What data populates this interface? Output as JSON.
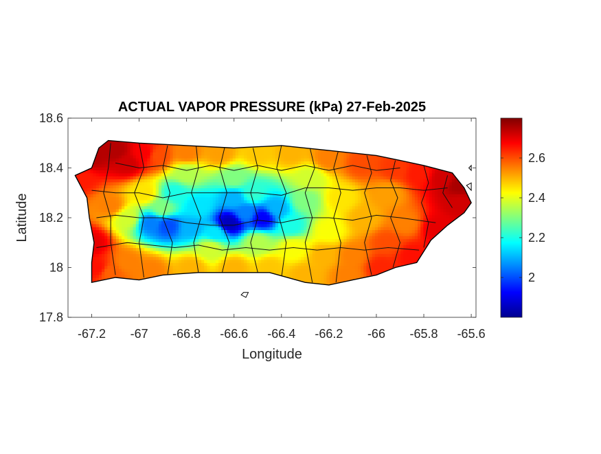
{
  "chart_data": {
    "type": "heatmap",
    "title": "ACTUAL VAPOR PRESSURE (kPa) 27-Feb-2025",
    "xlabel": "Longitude",
    "ylabel": "Latitude",
    "xlim": [
      -67.3,
      -65.58
    ],
    "ylim": [
      17.8,
      18.6
    ],
    "x_ticks": [
      {
        "value": -67.2,
        "label": "-67.2"
      },
      {
        "value": -67.0,
        "label": "-67"
      },
      {
        "value": -66.8,
        "label": "-66.8"
      },
      {
        "value": -66.6,
        "label": "-66.6"
      },
      {
        "value": -66.4,
        "label": "-66.4"
      },
      {
        "value": -66.2,
        "label": "-66.2"
      },
      {
        "value": -66.0,
        "label": "-66"
      },
      {
        "value": -65.8,
        "label": "-65.8"
      },
      {
        "value": -65.6,
        "label": "-65.6"
      }
    ],
    "y_ticks": [
      {
        "value": 18.6,
        "label": "18.6"
      },
      {
        "value": 18.4,
        "label": "18.4"
      },
      {
        "value": 18.2,
        "label": "18.2"
      },
      {
        "value": 18.0,
        "label": "18"
      },
      {
        "value": 17.8,
        "label": "17.8"
      }
    ],
    "colorbar": {
      "colormap": "jet",
      "range": [
        1.8,
        2.8
      ],
      "ticks": [
        {
          "value": 2.0,
          "label": "2"
        },
        {
          "value": 2.2,
          "label": "2.2"
        },
        {
          "value": 2.4,
          "label": "2.4"
        },
        {
          "value": 2.6,
          "label": "2.6"
        }
      ],
      "stops": [
        "#00008f",
        "#0000ff",
        "#0080ff",
        "#00ffff",
        "#80ff80",
        "#ffff00",
        "#ff8000",
        "#ff0000",
        "#800000"
      ]
    },
    "grid": false,
    "outline": [
      [
        -67.27,
        18.37
      ],
      [
        -67.2,
        18.4
      ],
      [
        -67.17,
        18.48
      ],
      [
        -67.13,
        18.51
      ],
      [
        -67.0,
        18.5
      ],
      [
        -66.8,
        18.49
      ],
      [
        -66.6,
        18.48
      ],
      [
        -66.4,
        18.49
      ],
      [
        -66.2,
        18.47
      ],
      [
        -66.0,
        18.45
      ],
      [
        -65.9,
        18.43
      ],
      [
        -65.8,
        18.41
      ],
      [
        -65.68,
        18.38
      ],
      [
        -65.63,
        18.32
      ],
      [
        -65.6,
        18.26
      ],
      [
        -65.63,
        18.22
      ],
      [
        -65.7,
        18.17
      ],
      [
        -65.77,
        18.11
      ],
      [
        -65.83,
        18.02
      ],
      [
        -65.92,
        18.0
      ],
      [
        -66.0,
        17.97
      ],
      [
        -66.1,
        17.95
      ],
      [
        -66.2,
        17.93
      ],
      [
        -66.3,
        17.94
      ],
      [
        -66.45,
        17.98
      ],
      [
        -66.6,
        17.98
      ],
      [
        -66.75,
        17.98
      ],
      [
        -66.9,
        17.97
      ],
      [
        -67.0,
        17.95
      ],
      [
        -67.1,
        17.96
      ],
      [
        -67.2,
        17.94
      ],
      [
        -67.2,
        18.02
      ],
      [
        -67.19,
        18.1
      ],
      [
        -67.21,
        18.2
      ],
      [
        -67.22,
        18.28
      ],
      [
        -67.27,
        18.37
      ]
    ],
    "municipal_borders": [
      [
        [
          -67.2,
          18.31
        ],
        [
          -67.1,
          18.3
        ],
        [
          -67.0,
          18.3
        ],
        [
          -66.9,
          18.28
        ],
        [
          -66.8,
          18.3
        ],
        [
          -66.7,
          18.3
        ],
        [
          -66.6,
          18.3
        ],
        [
          -66.5,
          18.3
        ],
        [
          -66.4,
          18.29
        ],
        [
          -66.3,
          18.32
        ],
        [
          -66.2,
          18.32
        ],
        [
          -66.1,
          18.31
        ],
        [
          -66.0,
          18.32
        ],
        [
          -65.9,
          18.32
        ],
        [
          -65.8,
          18.31
        ],
        [
          -65.7,
          18.32
        ]
      ],
      [
        [
          -67.18,
          18.2
        ],
        [
          -67.1,
          18.21
        ],
        [
          -67.0,
          18.2
        ],
        [
          -66.9,
          18.2
        ],
        [
          -66.8,
          18.18
        ],
        [
          -66.7,
          18.17
        ],
        [
          -66.6,
          18.17
        ],
        [
          -66.5,
          18.19
        ],
        [
          -66.4,
          18.18
        ],
        [
          -66.3,
          18.2
        ],
        [
          -66.2,
          18.2
        ],
        [
          -66.1,
          18.19
        ],
        [
          -66.0,
          18.21
        ],
        [
          -65.9,
          18.2
        ],
        [
          -65.75,
          18.18
        ]
      ],
      [
        [
          -67.18,
          18.08
        ],
        [
          -67.05,
          18.1
        ],
        [
          -66.95,
          18.09
        ],
        [
          -66.85,
          18.08
        ],
        [
          -66.75,
          18.09
        ],
        [
          -66.65,
          18.07
        ],
        [
          -66.55,
          18.08
        ],
        [
          -66.45,
          18.07
        ],
        [
          -66.35,
          18.08
        ],
        [
          -66.25,
          18.07
        ],
        [
          -66.15,
          18.08
        ],
        [
          -66.05,
          18.07
        ],
        [
          -65.95,
          18.08
        ],
        [
          -65.82,
          18.07
        ]
      ],
      [
        [
          -67.12,
          18.5
        ],
        [
          -67.13,
          18.4
        ],
        [
          -67.15,
          18.3
        ],
        [
          -67.12,
          18.2
        ],
        [
          -67.12,
          18.1
        ],
        [
          -67.1,
          17.97
        ]
      ],
      [
        [
          -67.0,
          18.5
        ],
        [
          -66.98,
          18.4
        ],
        [
          -67.02,
          18.3
        ],
        [
          -66.98,
          18.2
        ],
        [
          -67.0,
          18.1
        ],
        [
          -66.98,
          17.96
        ]
      ],
      [
        [
          -66.88,
          18.49
        ],
        [
          -66.9,
          18.4
        ],
        [
          -66.87,
          18.3
        ],
        [
          -66.9,
          18.2
        ],
        [
          -66.86,
          18.1
        ],
        [
          -66.88,
          17.97
        ]
      ],
      [
        [
          -66.76,
          18.49
        ],
        [
          -66.75,
          18.4
        ],
        [
          -66.78,
          18.3
        ],
        [
          -66.74,
          18.2
        ],
        [
          -66.77,
          18.1
        ],
        [
          -66.75,
          17.98
        ]
      ],
      [
        [
          -66.64,
          18.48
        ],
        [
          -66.66,
          18.4
        ],
        [
          -66.63,
          18.3
        ],
        [
          -66.66,
          18.2
        ],
        [
          -66.62,
          18.1
        ],
        [
          -66.65,
          17.98
        ]
      ],
      [
        [
          -66.52,
          18.48
        ],
        [
          -66.5,
          18.4
        ],
        [
          -66.53,
          18.3
        ],
        [
          -66.5,
          18.2
        ],
        [
          -66.53,
          18.1
        ],
        [
          -66.5,
          17.98
        ]
      ],
      [
        [
          -66.4,
          18.49
        ],
        [
          -66.42,
          18.4
        ],
        [
          -66.38,
          18.3
        ],
        [
          -66.41,
          18.2
        ],
        [
          -66.38,
          18.1
        ],
        [
          -66.4,
          17.96
        ]
      ],
      [
        [
          -66.28,
          18.48
        ],
        [
          -66.26,
          18.4
        ],
        [
          -66.3,
          18.3
        ],
        [
          -66.27,
          18.2
        ],
        [
          -66.3,
          18.1
        ],
        [
          -66.27,
          17.94
        ]
      ],
      [
        [
          -66.16,
          18.47
        ],
        [
          -66.18,
          18.4
        ],
        [
          -66.15,
          18.3
        ],
        [
          -66.18,
          18.2
        ],
        [
          -66.15,
          18.1
        ],
        [
          -66.17,
          17.94
        ]
      ],
      [
        [
          -66.04,
          18.45
        ],
        [
          -66.02,
          18.38
        ],
        [
          -66.05,
          18.3
        ],
        [
          -66.02,
          18.2
        ],
        [
          -66.05,
          18.1
        ],
        [
          -66.02,
          17.97
        ]
      ],
      [
        [
          -65.92,
          18.43
        ],
        [
          -65.94,
          18.35
        ],
        [
          -65.91,
          18.28
        ],
        [
          -65.94,
          18.2
        ],
        [
          -65.9,
          18.1
        ],
        [
          -65.93,
          18.0
        ]
      ],
      [
        [
          -65.8,
          18.41
        ],
        [
          -65.78,
          18.34
        ],
        [
          -65.81,
          18.26
        ],
        [
          -65.78,
          18.18
        ],
        [
          -65.8,
          18.08
        ]
      ],
      [
        [
          -65.7,
          18.37
        ],
        [
          -65.72,
          18.3
        ],
        [
          -65.68,
          18.24
        ]
      ],
      [
        [
          -67.1,
          18.42
        ],
        [
          -67.0,
          18.4
        ],
        [
          -66.9,
          18.41
        ],
        [
          -66.8,
          18.39
        ],
        [
          -66.7,
          18.41
        ],
        [
          -66.6,
          18.39
        ],
        [
          -66.5,
          18.41
        ],
        [
          -66.4,
          18.39
        ],
        [
          -66.3,
          18.41
        ],
        [
          -66.2,
          18.39
        ],
        [
          -66.1,
          18.41
        ],
        [
          -66.0,
          18.39
        ],
        [
          -65.9,
          18.4
        ]
      ]
    ],
    "islets": [
      [
        [
          -66.56,
          17.9
        ],
        [
          -66.54,
          17.9
        ],
        [
          -66.55,
          17.88
        ],
        [
          -66.57,
          17.89
        ],
        [
          -66.56,
          17.9
        ]
      ],
      [
        [
          -65.62,
          18.33
        ],
        [
          -65.6,
          18.34
        ],
        [
          -65.6,
          18.31
        ],
        [
          -65.62,
          18.33
        ]
      ],
      [
        [
          -65.61,
          18.4
        ],
        [
          -65.6,
          18.41
        ],
        [
          -65.6,
          18.39
        ],
        [
          -65.61,
          18.4
        ]
      ]
    ],
    "field_points": [
      [
        -67.25,
        18.36,
        2.65
      ],
      [
        -67.2,
        18.45,
        2.75
      ],
      [
        -67.1,
        18.47,
        2.75
      ],
      [
        -67.05,
        18.42,
        2.72
      ],
      [
        -66.98,
        18.46,
        2.68
      ],
      [
        -67.2,
        18.1,
        2.7
      ],
      [
        -67.18,
        18.0,
        2.66
      ],
      [
        -67.12,
        17.98,
        2.58
      ],
      [
        -67.12,
        18.25,
        2.55
      ],
      [
        -66.92,
        18.45,
        2.6
      ],
      [
        -66.8,
        18.46,
        2.55
      ],
      [
        -66.66,
        18.46,
        2.52
      ],
      [
        -66.5,
        18.46,
        2.48
      ],
      [
        -66.36,
        18.46,
        2.5
      ],
      [
        -66.2,
        18.44,
        2.55
      ],
      [
        -66.06,
        18.42,
        2.6
      ],
      [
        -65.92,
        18.4,
        2.62
      ],
      [
        -65.82,
        18.38,
        2.65
      ],
      [
        -65.72,
        18.36,
        2.72
      ],
      [
        -65.65,
        18.33,
        2.76
      ],
      [
        -65.65,
        18.26,
        2.72
      ],
      [
        -65.74,
        18.16,
        2.7
      ],
      [
        -65.85,
        18.05,
        2.66
      ],
      [
        -65.98,
        18.0,
        2.64
      ],
      [
        -66.12,
        17.97,
        2.55
      ],
      [
        -66.3,
        17.97,
        2.5
      ],
      [
        -66.45,
        18.0,
        2.48
      ],
      [
        -66.6,
        18.0,
        2.5
      ],
      [
        -66.78,
        18.0,
        2.5
      ],
      [
        -66.95,
        17.99,
        2.55
      ],
      [
        -67.05,
        18.02,
        2.55
      ],
      [
        -66.85,
        18.3,
        2.2
      ],
      [
        -66.75,
        18.25,
        2.15
      ],
      [
        -66.62,
        18.18,
        1.85
      ],
      [
        -66.55,
        18.22,
        2.05
      ],
      [
        -66.48,
        18.2,
        1.92
      ],
      [
        -66.42,
        18.24,
        2.1
      ],
      [
        -66.36,
        18.17,
        2.2
      ],
      [
        -66.95,
        18.18,
        2.05
      ],
      [
        -66.88,
        18.17,
        2.0
      ],
      [
        -66.78,
        18.16,
        2.1
      ],
      [
        -66.68,
        18.14,
        2.15
      ],
      [
        -66.6,
        18.28,
        2.1
      ],
      [
        -66.52,
        18.3,
        2.22
      ],
      [
        -66.3,
        18.27,
        2.3
      ],
      [
        -66.28,
        18.36,
        2.38
      ],
      [
        -66.6,
        18.36,
        2.3
      ],
      [
        -66.8,
        18.38,
        2.35
      ],
      [
        -66.9,
        18.24,
        2.3
      ],
      [
        -66.98,
        18.3,
        2.45
      ],
      [
        -67.05,
        18.2,
        2.38
      ],
      [
        -66.7,
        18.08,
        2.38
      ],
      [
        -66.5,
        18.1,
        2.35
      ],
      [
        -66.35,
        18.08,
        2.42
      ],
      [
        -66.2,
        18.15,
        2.42
      ],
      [
        -66.15,
        18.28,
        2.45
      ],
      [
        -66.05,
        18.2,
        2.5
      ],
      [
        -65.95,
        18.3,
        2.52
      ],
      [
        -65.88,
        18.18,
        2.55
      ],
      [
        -66.1,
        18.05,
        2.55
      ],
      [
        -65.95,
        18.1,
        2.6
      ],
      [
        -66.22,
        18.05,
        2.5
      ]
    ]
  }
}
